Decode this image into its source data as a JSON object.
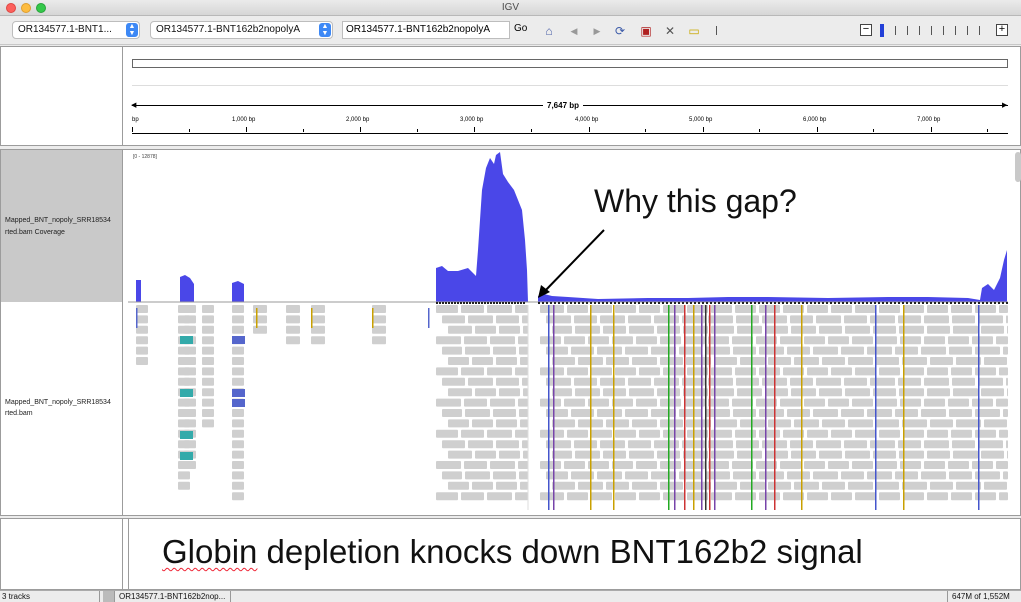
{
  "window": {
    "title": "IGV"
  },
  "toolbar": {
    "genome_select": "OR134577.1-BNT1...",
    "chromosome_select": "OR134577.1-BNT162b2nopolyA",
    "locus_input": "OR134577.1-BNT162b2nopolyA",
    "go_label": "Go",
    "icons": [
      "home-icon",
      "back-icon",
      "forward-icon",
      "refresh-icon",
      "roi-icon",
      "resize-icon",
      "popup-icon"
    ]
  },
  "ruler": {
    "span_label": "7,647 bp",
    "ticks": [
      "bp",
      "1,000 bp",
      "2,000 bp",
      "3,000 bp",
      "4,000 bp",
      "5,000 bp",
      "6,000 bp",
      "7,000 bp"
    ]
  },
  "tracks": {
    "coverage_name_line1": "Mapped_BNT_nopoly_SRR18534",
    "coverage_name_line2": "rted.bam Coverage",
    "coverage_range": "[0 - 12878]",
    "alignment_name_line1": "Mapped_BNT_nopoly_SRR18534",
    "alignment_name_line2": "rted.bam"
  },
  "annotations": {
    "question": "Why this gap?",
    "caption_part1": "Globin",
    "caption_part2": " depletion knocks down BNT162b2 signal"
  },
  "status": {
    "tracks": "3 tracks",
    "locus": "OR134577.1-BNT162b2nop...",
    "memory": "647M of 1,552M"
  },
  "colors": {
    "coverage": "#4a47e8",
    "read": "#cfcfcf"
  }
}
